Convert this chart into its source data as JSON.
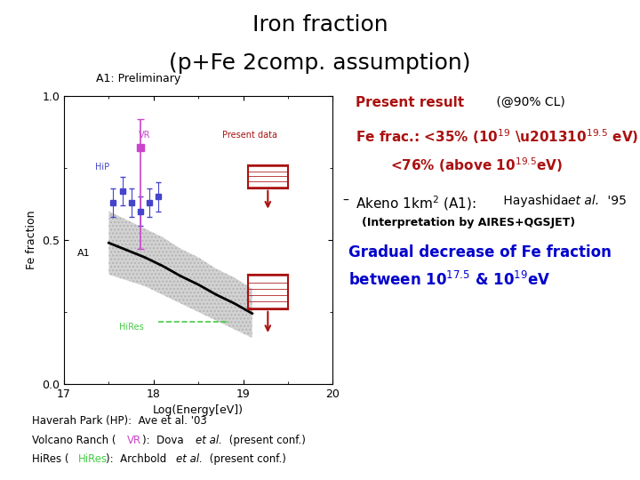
{
  "title_line1": "Iron fraction",
  "title_line2": "(p+Fe 2comp. assumption)",
  "plot_label": "A1: Preliminary",
  "xlabel": "Log(Energy[eV])",
  "ylabel": "Fe fraction",
  "xlim": [
    17,
    20
  ],
  "ylim": [
    0,
    1
  ],
  "a1_band_x": [
    17.5,
    17.7,
    17.9,
    18.1,
    18.3,
    18.5,
    18.7,
    18.9,
    19.1
  ],
  "a1_band_upper": [
    0.6,
    0.57,
    0.54,
    0.51,
    0.47,
    0.44,
    0.4,
    0.37,
    0.33
  ],
  "a1_band_lower": [
    0.38,
    0.36,
    0.34,
    0.31,
    0.28,
    0.25,
    0.22,
    0.19,
    0.16
  ],
  "a1_band_mid": [
    0.49,
    0.465,
    0.44,
    0.41,
    0.375,
    0.345,
    0.31,
    0.28,
    0.245
  ],
  "hp_x": [
    17.55,
    17.65,
    17.75,
    17.85,
    17.95,
    18.05
  ],
  "hp_y": [
    0.63,
    0.67,
    0.63,
    0.6,
    0.63,
    0.65
  ],
  "hp_yerr": [
    0.05,
    0.05,
    0.05,
    0.05,
    0.05,
    0.05
  ],
  "hp_color": "#4444cc",
  "vr_x": [
    17.85
  ],
  "vr_y": [
    0.82
  ],
  "vr_yerr_lo": [
    0.35
  ],
  "vr_yerr_hi": [
    0.1
  ],
  "vr_color": "#cc44cc",
  "hires_color": "#44cc44",
  "present_color": "#aa1111",
  "background_color": "#ffffff",
  "blue_color": "#0000cc"
}
